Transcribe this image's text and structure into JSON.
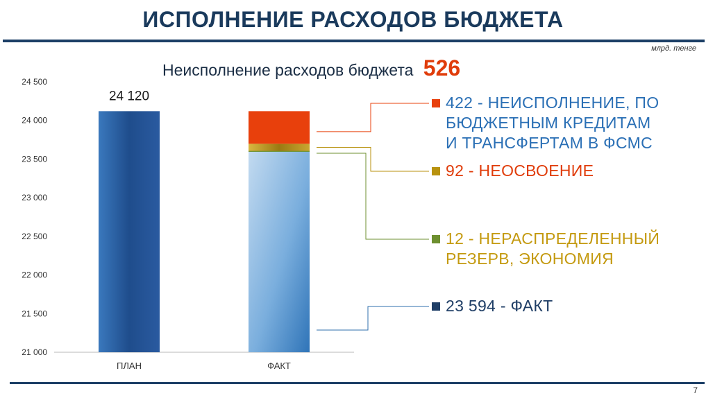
{
  "header": {
    "title": "ИСПОЛНЕНИЕ РАСХОДОВ БЮДЖЕТА",
    "unit": "млрд. тенге",
    "subtitle": "Неисполнение расходов бюджета",
    "subtitle_value": "526",
    "subtitle_value_color": "#e03c0a"
  },
  "page_number": "7",
  "chart_data": {
    "type": "bar",
    "stacked": true,
    "categories": [
      "ПЛАН",
      "ФАКТ"
    ],
    "y_ticks": [
      "21 000",
      "21 500",
      "22 000",
      "22 500",
      "23 000",
      "23 500",
      "24 000",
      "24 500"
    ],
    "ylim": [
      21000,
      24500
    ],
    "grid": false,
    "data_labels": [
      {
        "category": "ПЛАН",
        "text": "24 120"
      }
    ],
    "series": [
      {
        "category": "ПЛАН",
        "value": 24120,
        "color": "#2a5a9a"
      },
      {
        "category": "ФАКТ",
        "value": 23594,
        "color": "#6fa2d4"
      },
      {
        "category": "ФАКТ",
        "value": 12,
        "color": "#6d8f2f"
      },
      {
        "category": "ФАКТ",
        "value": 92,
        "color": "#b8920e"
      },
      {
        "category": "ФАКТ",
        "value": 422,
        "color": "#e8400c"
      }
    ]
  },
  "legend": [
    {
      "lines": [
        "422 - НЕИСПОЛНЕНИЕ, ПО",
        "БЮДЖЕТНЫМ КРЕДИТАМ",
        "И ТРАНСФЕРТАМ В ФСМС"
      ],
      "text_color": "#2a6fb5",
      "square_color": "#e8400c"
    },
    {
      "lines": [
        "92 - НЕОСВОЕНИЕ"
      ],
      "text_color": "#e03c0a",
      "square_color": "#b8920e"
    },
    {
      "lines": [
        "12 - НЕРАСПРЕДЕЛЕННЫЙ",
        "РЕЗЕРВ, ЭКОНОМИЯ"
      ],
      "text_color": "#c49a10",
      "square_color": "#6d8f2f"
    },
    {
      "lines": [
        "23 594 - ФАКТ"
      ],
      "text_color": "#1f3e66",
      "square_color": "#1f3e66"
    }
  ]
}
